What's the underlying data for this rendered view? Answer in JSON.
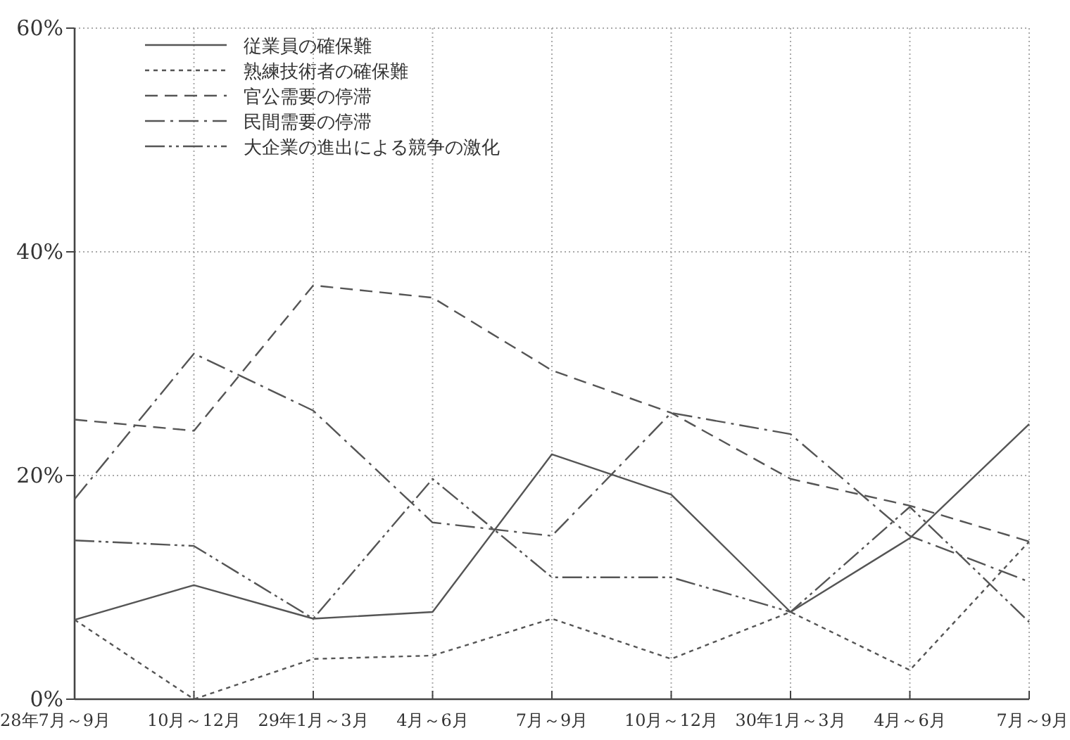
{
  "chart_data": {
    "type": "line",
    "categories": [
      "28年7月～9月",
      "10月～12月",
      "29年1月～3月",
      "4月～6月",
      "7月～9月",
      "10月～12月",
      "30年1月～3月",
      "4月～6月",
      "7月～9月"
    ],
    "series": [
      {
        "name": "従業員の確保難",
        "color": "#555555",
        "line_style": "solid",
        "values": [
          7.1,
          10.2,
          7.2,
          7.8,
          21.9,
          18.3,
          7.8,
          14.4,
          24.6
        ]
      },
      {
        "name": "熟練技術者の確保難",
        "color": "#555555",
        "line_style": "dotted",
        "values": [
          7.1,
          0,
          3.6,
          3.9,
          7.2,
          3.6,
          7.8,
          2.6,
          14.1
        ]
      },
      {
        "name": "官公需要の停滞",
        "color": "#555555",
        "line_style": "dashed",
        "values": [
          25.0,
          24.0,
          37.0,
          35.9,
          29.4,
          25.6,
          19.7,
          17.3,
          14.1
        ]
      },
      {
        "name": "民間需要の停滞",
        "color": "#555555",
        "line_style": "dashdot",
        "values": [
          17.9,
          30.9,
          25.8,
          15.8,
          14.6,
          25.6,
          23.7,
          14.6,
          10.5
        ]
      },
      {
        "name": "大企業の進出による競争の激化",
        "color": "#555555",
        "line_style": "dashdotdot",
        "values": [
          14.2,
          13.7,
          7.2,
          19.7,
          10.9,
          10.9,
          7.8,
          17.2,
          6.9
        ]
      }
    ],
    "ylim": [
      0,
      60
    ],
    "yticks": [
      {
        "value": 0,
        "label": "0%"
      },
      {
        "value": 20,
        "label": "20%"
      },
      {
        "value": 40,
        "label": "40%"
      },
      {
        "value": 60,
        "label": "60%"
      }
    ],
    "grid": true,
    "legend": "top left",
    "marker": "none"
  }
}
